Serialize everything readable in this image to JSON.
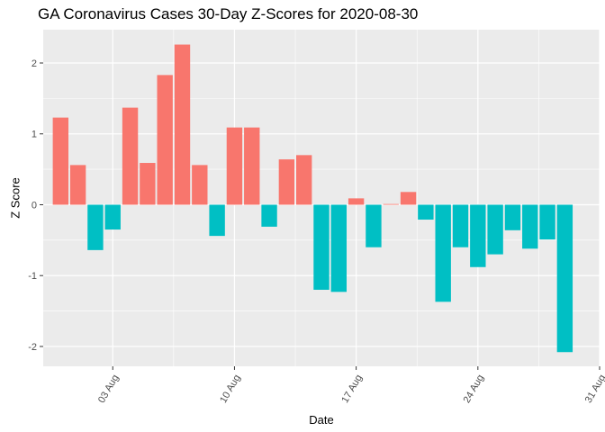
{
  "chart_data": {
    "type": "bar",
    "title": "GA Coronavirus Cases 30-Day Z-Scores for 2020-08-30",
    "xlabel": "Date",
    "ylabel": "Z Score",
    "x_range": [
      "2020-07-30",
      "2020-08-31"
    ],
    "ylim": [
      -2.28,
      2.47
    ],
    "y_ticks": [
      -2,
      -1,
      0,
      1,
      2
    ],
    "x_ticks": [
      {
        "date": "2020-08-03",
        "label": "03 Aug"
      },
      {
        "date": "2020-08-10",
        "label": "10 Aug"
      },
      {
        "date": "2020-08-17",
        "label": "17 Aug"
      },
      {
        "date": "2020-08-24",
        "label": "24 Aug"
      },
      {
        "date": "2020-08-31",
        "label": "31 Aug"
      }
    ],
    "colors": {
      "positive": "#F8766D",
      "negative": "#00BFC4",
      "panel": "#EBEBEB",
      "grid": "#FFFFFF"
    },
    "grid": true,
    "legend": "none",
    "bars": [
      {
        "date": "2020-07-31",
        "z": 1.23
      },
      {
        "date": "2020-08-01",
        "z": 0.56
      },
      {
        "date": "2020-08-02",
        "z": -0.64
      },
      {
        "date": "2020-08-03",
        "z": -0.35
      },
      {
        "date": "2020-08-04",
        "z": 1.37
      },
      {
        "date": "2020-08-05",
        "z": 0.59
      },
      {
        "date": "2020-08-06",
        "z": 1.83
      },
      {
        "date": "2020-08-07",
        "z": 2.26
      },
      {
        "date": "2020-08-08",
        "z": 0.56
      },
      {
        "date": "2020-08-09",
        "z": -0.44
      },
      {
        "date": "2020-08-10",
        "z": 1.09
      },
      {
        "date": "2020-08-11",
        "z": 1.09
      },
      {
        "date": "2020-08-12",
        "z": -0.31
      },
      {
        "date": "2020-08-13",
        "z": 0.64
      },
      {
        "date": "2020-08-14",
        "z": 0.7
      },
      {
        "date": "2020-08-15",
        "z": -1.2
      },
      {
        "date": "2020-08-16",
        "z": -1.23
      },
      {
        "date": "2020-08-17",
        "z": 0.09
      },
      {
        "date": "2020-08-18",
        "z": -0.6
      },
      {
        "date": "2020-08-19",
        "z": 0.01
      },
      {
        "date": "2020-08-20",
        "z": 0.18
      },
      {
        "date": "2020-08-21",
        "z": -0.21
      },
      {
        "date": "2020-08-22",
        "z": -1.37
      },
      {
        "date": "2020-08-23",
        "z": -0.6
      },
      {
        "date": "2020-08-24",
        "z": -0.88
      },
      {
        "date": "2020-08-25",
        "z": -0.7
      },
      {
        "date": "2020-08-26",
        "z": -0.36
      },
      {
        "date": "2020-08-27",
        "z": -0.62
      },
      {
        "date": "2020-08-28",
        "z": -0.49
      },
      {
        "date": "2020-08-29",
        "z": -2.08
      }
    ]
  }
}
